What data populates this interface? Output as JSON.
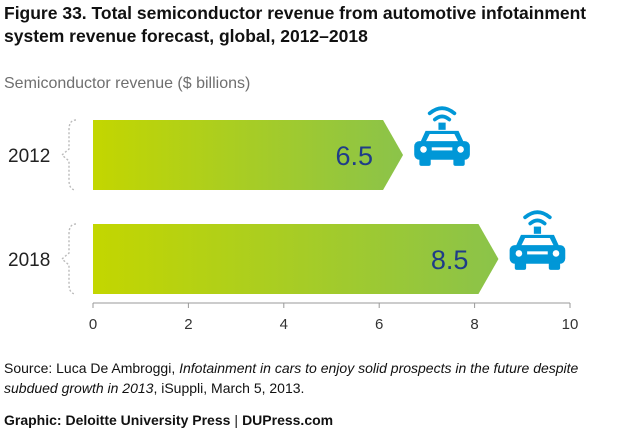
{
  "figure": {
    "title": "Figure 33. Total semiconductor revenue from automotive infotainment system revenue forecast, global, 2012–2018"
  },
  "chart_data": {
    "type": "bar",
    "orientation": "horizontal",
    "unit_label": "Semiconductor revenue ($ billions)",
    "categories": [
      "2012",
      "2018"
    ],
    "values": [
      6.5,
      8.5
    ],
    "value_labels": [
      "6.5",
      "8.5"
    ],
    "xlim": [
      0,
      10
    ],
    "xticks": [
      "0",
      "2",
      "4",
      "6",
      "8",
      "10"
    ],
    "grid": false,
    "colors": {
      "bar_start": "#c3d600",
      "bar_end": "#8bc34a",
      "value_text": "#1f3c88",
      "icon": "#0097d7",
      "axis": "#999999"
    },
    "icon": "connected-car-icon"
  },
  "source": {
    "prefix": "Source: Luca De Ambroggi, ",
    "italic": "Infotainment in cars to enjoy solid prospects in the future despite subdued growth in 2013",
    "suffix": ", iSuppli, March 5, 2013."
  },
  "credit": {
    "left": "Graphic: Deloitte University Press",
    "separator": "|",
    "right": "DUPress.com"
  }
}
